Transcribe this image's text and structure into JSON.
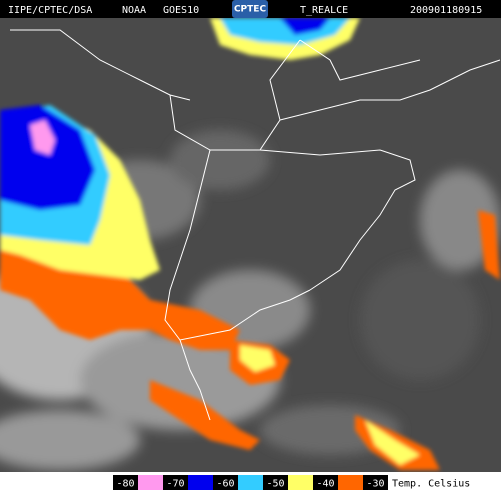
{
  "header": {
    "items": [
      "IIPE/CPTEC/DSA",
      "NOAA",
      "GOES10",
      "T_REALCE",
      "200901180915"
    ],
    "logo": "CPTEC"
  },
  "legend": {
    "entries": [
      {
        "value": -80,
        "color": "#ff99ee"
      },
      {
        "value": -70,
        "color": "#0000ee"
      },
      {
        "value": -60,
        "color": "#33ccff"
      },
      {
        "value": -50,
        "color": "#ffff66"
      },
      {
        "value": -40,
        "color": "#ff6600"
      },
      {
        "value": -30,
        "color": null
      }
    ],
    "unit": "Temp. Celsius"
  }
}
